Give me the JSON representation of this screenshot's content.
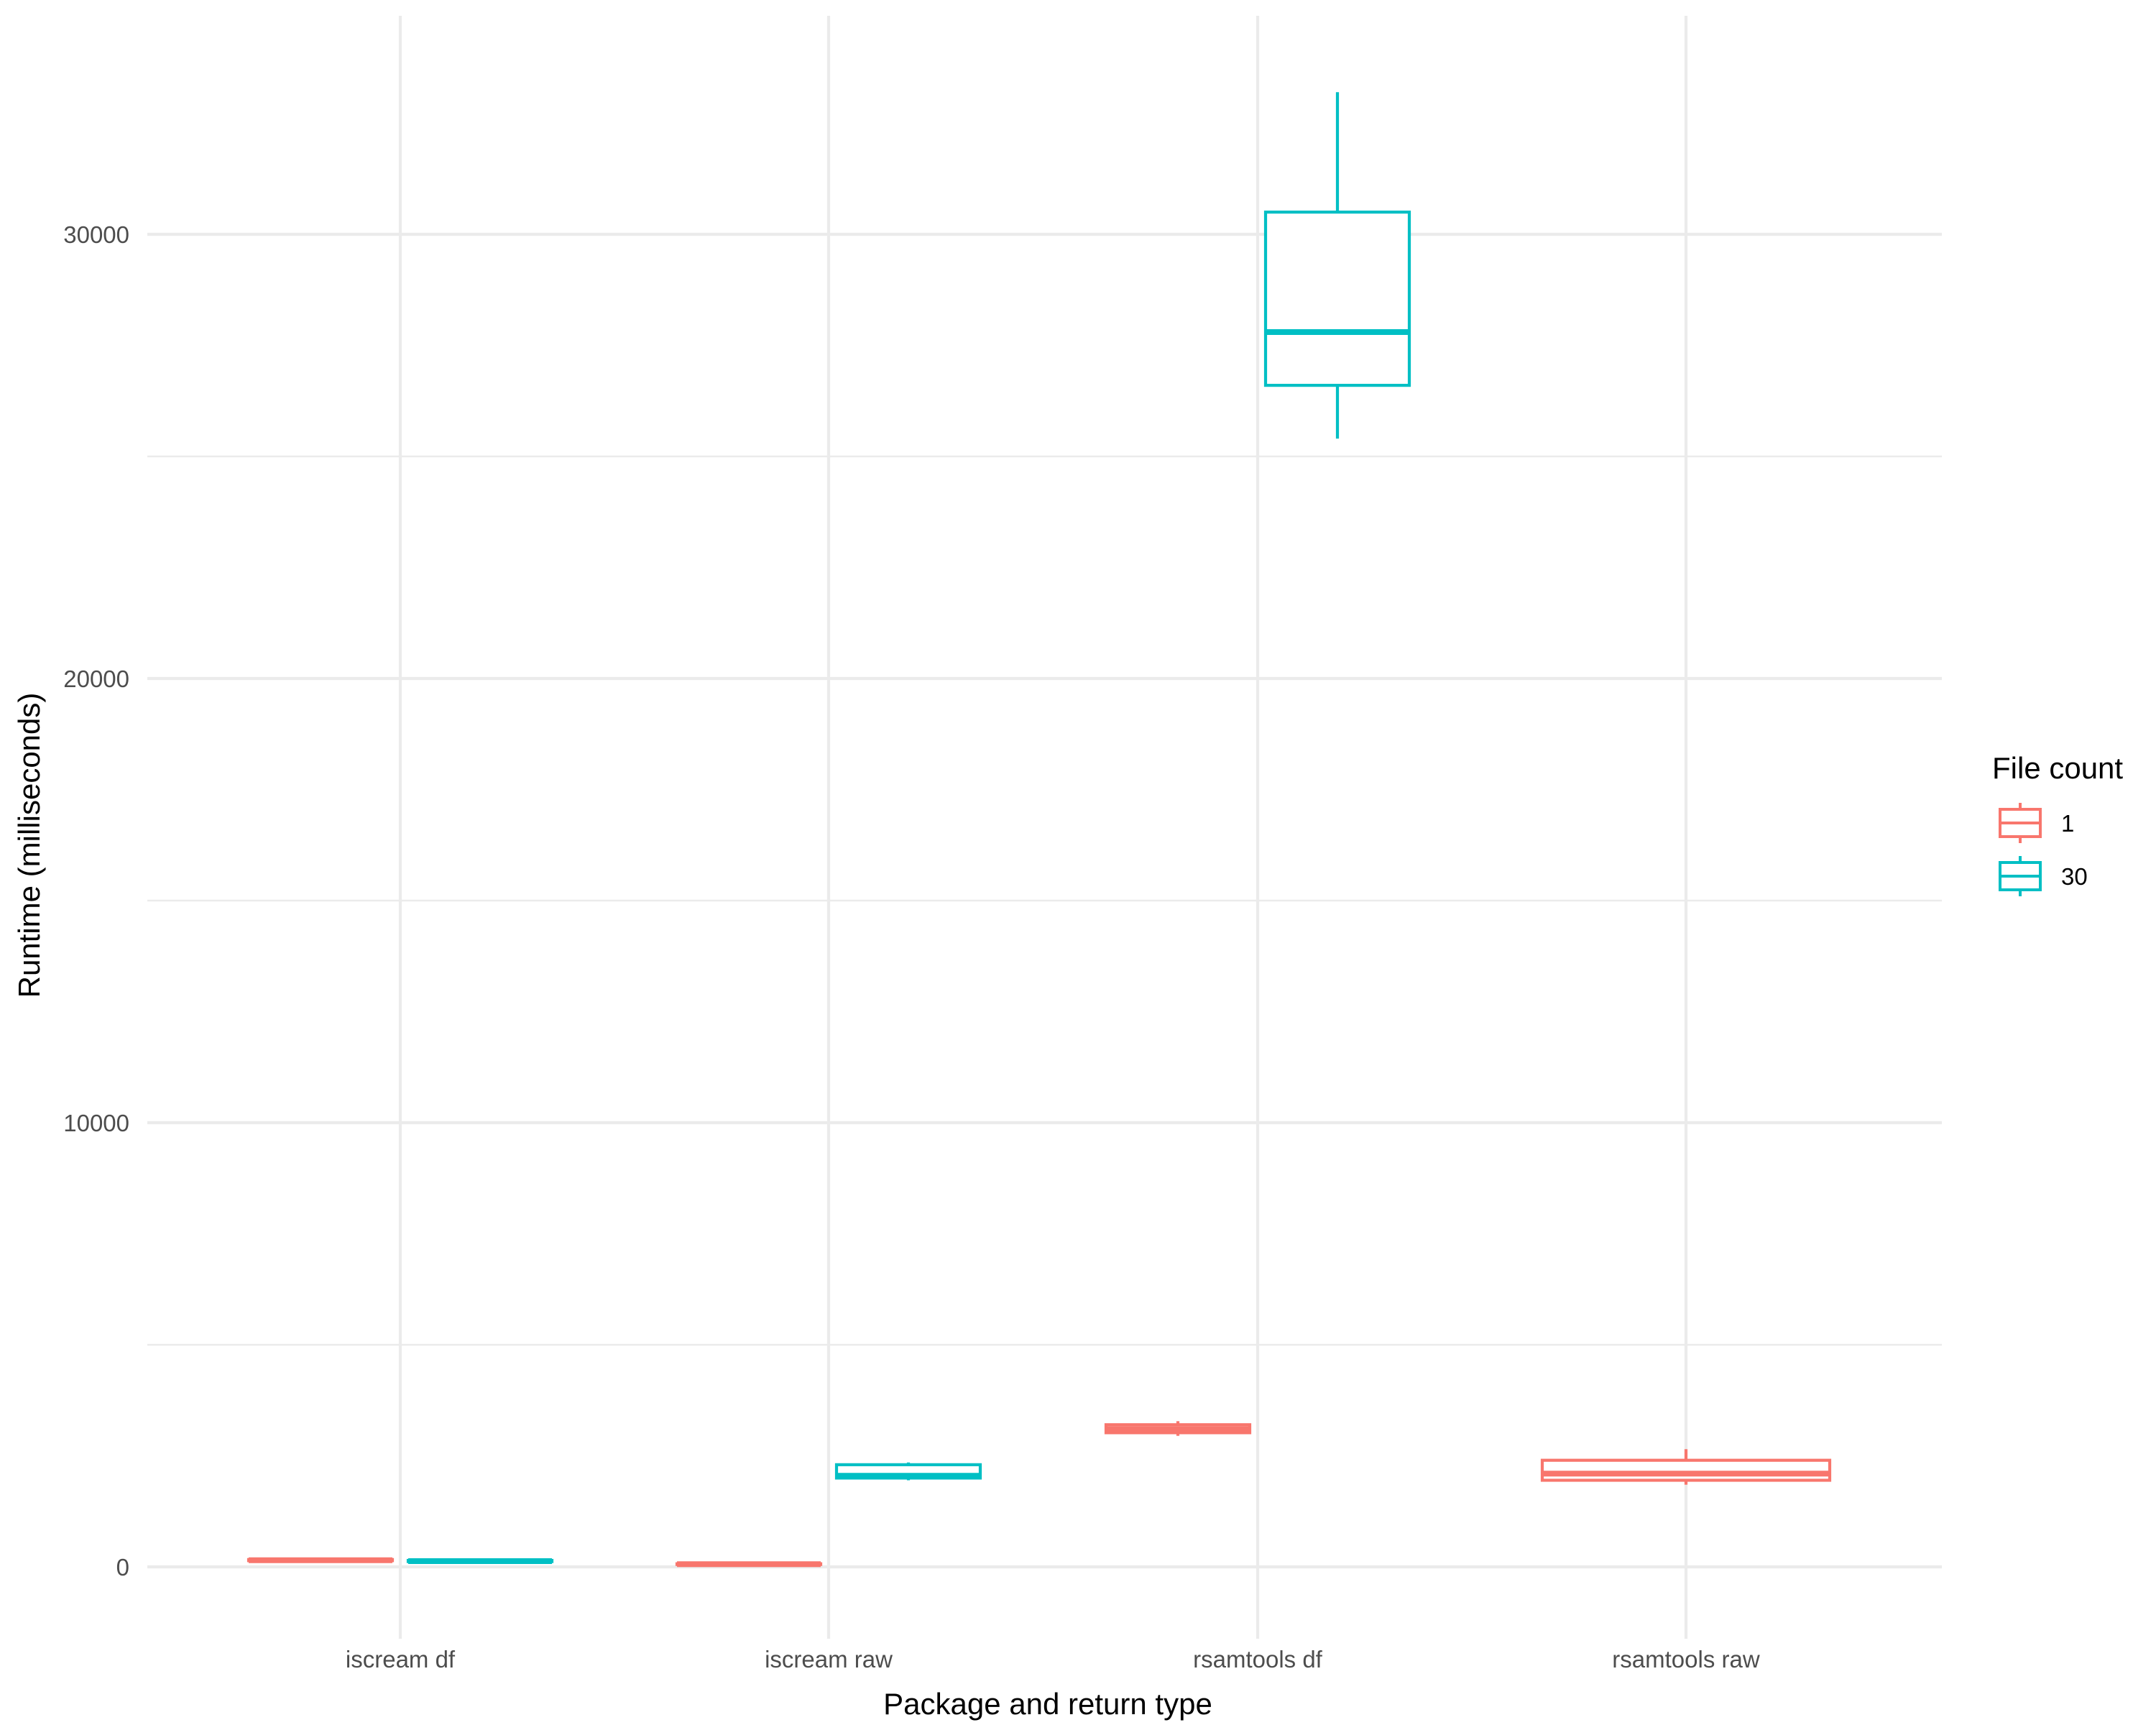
{
  "chart_data": {
    "type": "box",
    "title": "",
    "xlabel": "Package and return type",
    "ylabel": "Runtime (milliseconds)",
    "categories": [
      "iscream df",
      "iscream raw",
      "rsamtools df",
      "rsamtools raw"
    ],
    "ylim": [
      -1500,
      34000
    ],
    "y_ticks": [
      0,
      10000,
      20000,
      30000
    ],
    "y_tick_labels": [
      "0",
      "10000",
      "20000",
      "30000"
    ],
    "y_minor_ticks": [
      5000,
      15000,
      25000
    ],
    "grid": true,
    "legend": {
      "title": "File count",
      "position": "right",
      "entries": [
        {
          "label": "1",
          "color": "#F8766D"
        },
        {
          "label": "30",
          "color": "#00BFC4"
        }
      ]
    },
    "series": [
      {
        "name": "1",
        "color": "#F8766D",
        "boxes": [
          {
            "category": "iscream df",
            "min": 130,
            "q1": 140,
            "median": 150,
            "q3": 165,
            "max": 180
          },
          {
            "category": "iscream raw",
            "min": 50,
            "q1": 55,
            "median": 60,
            "q3": 70,
            "max": 80
          },
          {
            "category": "rsamtools df",
            "min": 2950,
            "q1": 3020,
            "median": 3100,
            "q3": 3200,
            "max": 3280
          },
          {
            "category": "rsamtools raw",
            "min": 1850,
            "q1": 1950,
            "median": 2100,
            "q3": 2400,
            "max": 2650
          }
        ]
      },
      {
        "name": "30",
        "color": "#00BFC4",
        "boxes": [
          {
            "category": "iscream df",
            "min": 110,
            "q1": 120,
            "median": 130,
            "q3": 145,
            "max": 160
          },
          {
            "category": "iscream raw",
            "min": 1950,
            "q1": 2000,
            "median": 2050,
            "q3": 2300,
            "max": 2350
          },
          {
            "category": "rsamtools df",
            "min": 25400,
            "q1": 26600,
            "median": 27800,
            "q3": 30500,
            "max": 33200
          }
        ]
      }
    ]
  }
}
